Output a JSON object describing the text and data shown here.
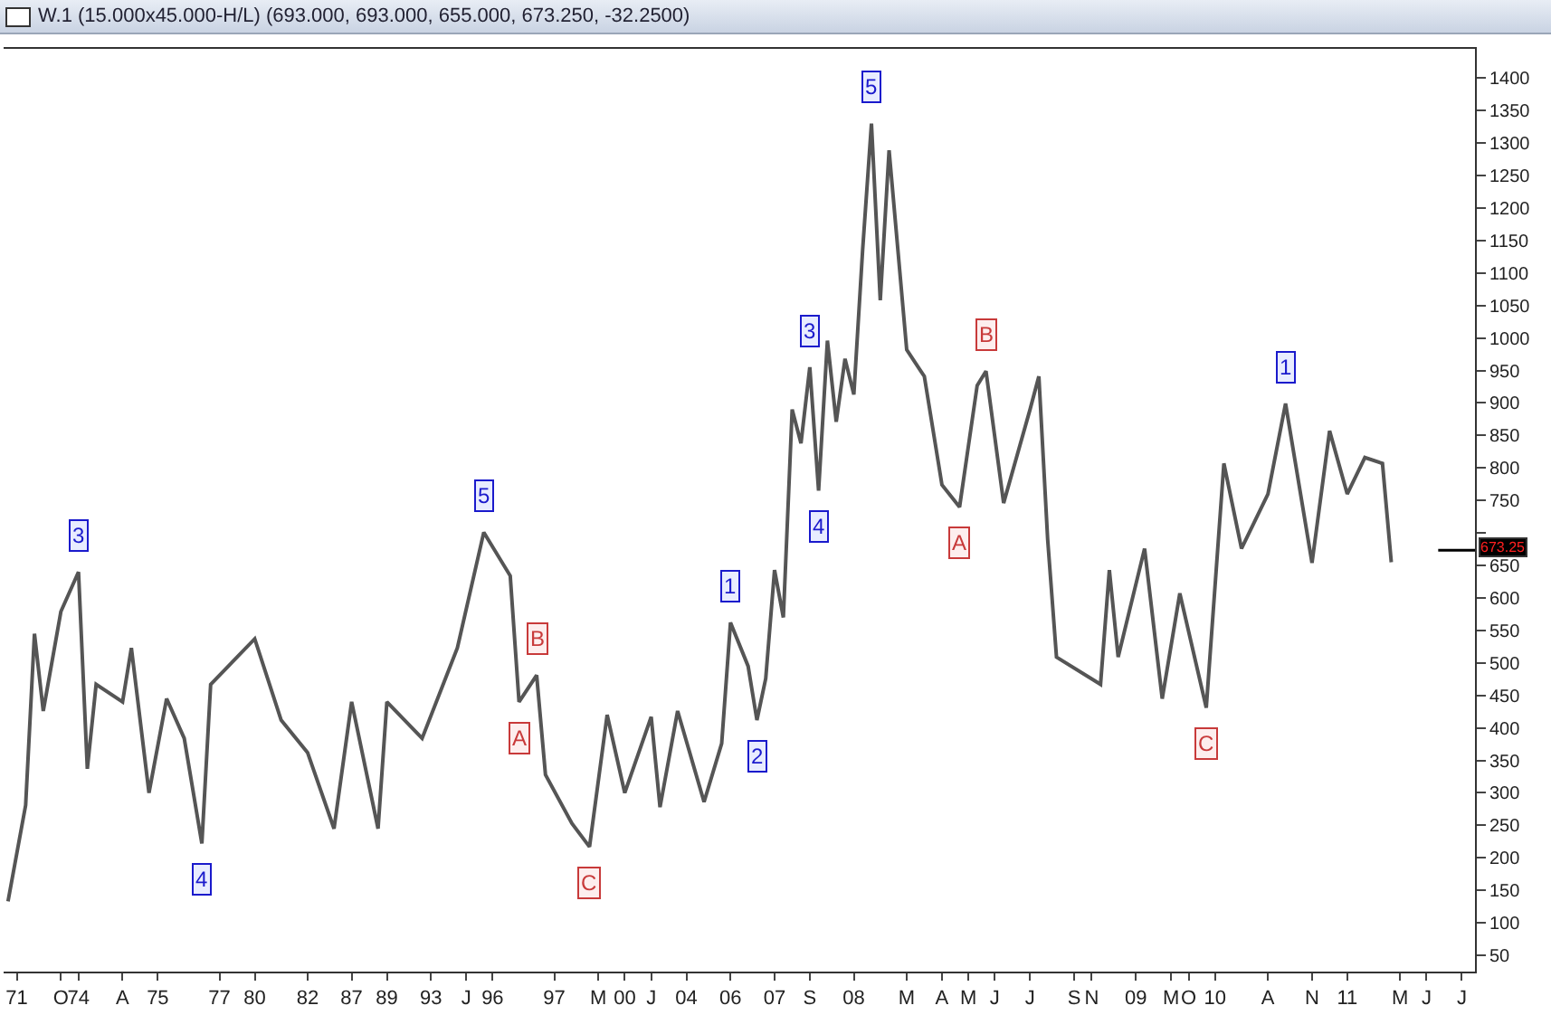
{
  "chart_data": {
    "type": "line",
    "title": "W.1 (15.000x45.000-H/L) (693.000, 693.000, 655.000, 673.250, -32.2500)",
    "categories": [
      null,
      "71",
      null,
      null,
      null,
      null,
      "O",
      null,
      "74",
      null,
      null,
      null,
      null,
      "A",
      null,
      null,
      null,
      "75",
      null,
      null,
      null,
      null,
      null,
      null,
      "77",
      null,
      null,
      null,
      "80",
      null,
      null,
      null,
      null,
      null,
      "82",
      null,
      null,
      null,
      null,
      "87",
      null,
      null,
      null,
      "89",
      null,
      null,
      null,
      null,
      "93",
      null,
      null,
      null,
      "J",
      null,
      null,
      "96",
      null,
      null,
      null,
      null,
      null,
      null,
      "97",
      null,
      null,
      null,
      null,
      "M",
      null,
      null,
      "00",
      null,
      null,
      "J",
      null,
      null,
      null,
      "04",
      null,
      null,
      null,
      null,
      "06",
      null,
      null,
      null,
      null,
      "07",
      null,
      null,
      null,
      "S",
      null,
      null,
      null,
      null,
      "08",
      null,
      null,
      null,
      null,
      null,
      "M",
      null,
      null,
      null,
      "A",
      null,
      null,
      "M",
      null,
      null,
      "J",
      null,
      null,
      null,
      "J",
      null,
      null,
      null,
      null,
      "S",
      null,
      "N",
      null,
      null,
      null,
      null,
      "09",
      null,
      null,
      null,
      "M",
      null,
      "O",
      null,
      null,
      "10",
      null,
      null,
      null,
      null,
      null,
      "A",
      null,
      null,
      null,
      null,
      "N",
      null,
      null,
      null,
      "11",
      null,
      null,
      null,
      null,
      null,
      "M",
      null,
      null,
      "J",
      null,
      null,
      null,
      "J",
      null
    ],
    "series": [
      {
        "color": "#555555",
        "values": [
          133,
          null,
          281,
          545,
          426,
          null,
          579,
          null,
          640,
          337,
          467,
          null,
          null,
          440,
          523,
          null,
          300,
          null,
          445,
          null,
          384,
          null,
          222,
          467,
          null,
          null,
          null,
          null,
          537,
          null,
          null,
          412,
          null,
          null,
          362,
          null,
          null,
          245,
          null,
          440,
          null,
          null,
          245,
          440,
          null,
          null,
          null,
          384,
          null,
          null,
          null,
          523,
          null,
          null,
          701,
          null,
          null,
          634,
          440,
          null,
          481,
          328,
          null,
          null,
          253,
          null,
          217,
          null,
          420,
          null,
          300,
          null,
          null,
          417,
          278,
          null,
          426,
          null,
          null,
          286,
          null,
          376,
          562,
          null,
          495,
          412,
          476,
          643,
          570,
          890,
          838,
          955,
          765,
          996,
          871,
          968,
          913,
          1136,
          1330,
          1058,
          1289,
          null,
          982,
          null,
          941,
          null,
          774,
          null,
          740,
          null,
          927,
          949,
          null,
          746,
          null,
          null,
          890,
          941,
          690,
          509,
          null,
          null,
          null,
          null,
          467,
          643,
          509,
          null,
          null,
          676,
          null,
          445,
          null,
          607,
          null,
          null,
          431,
          null,
          807,
          null,
          676,
          null,
          null,
          760,
          null,
          899,
          null,
          null,
          654,
          null,
          857,
          null,
          760,
          null,
          816,
          null,
          807,
          655,
          null,
          null,
          null,
          null,
          null,
          null,
          null,
          null,
          null
        ]
      }
    ],
    "annotations": [
      {
        "text": "3",
        "y": 640
      },
      {
        "text": "4",
        "y": 222
      },
      {
        "text": "5",
        "y": 701
      },
      {
        "text": "A",
        "y": 440
      },
      {
        "text": "B",
        "y": 481
      },
      {
        "text": "C",
        "y": 217
      },
      {
        "text": "1",
        "y": 562
      },
      {
        "text": "2",
        "y": 412
      },
      {
        "text": "3",
        "y": 955
      },
      {
        "text": "4",
        "y": 765
      },
      {
        "text": "5",
        "y": 1330
      },
      {
        "text": "A",
        "y": 740
      },
      {
        "text": "B",
        "y": 949
      },
      {
        "text": "C",
        "y": 431
      },
      {
        "text": "1",
        "y": 899
      }
    ],
    "ref_lines": [
      {
        "axis": "y",
        "value": 673.25,
        "label": "673.25",
        "color": "#000000"
      }
    ],
    "ylim": [
      25,
      1445
    ],
    "yticks": [
      50,
      100,
      150,
      200,
      250,
      300,
      350,
      400,
      450,
      500,
      550,
      600,
      650,
      {
        "value": 700,
        "label": null
      },
      750,
      800,
      850,
      900,
      950,
      1000,
      1050,
      1100,
      1150,
      1200,
      1250,
      1300,
      1350,
      1400
    ],
    "grid": false,
    "marker": "none",
    "line_style": "solid"
  }
}
